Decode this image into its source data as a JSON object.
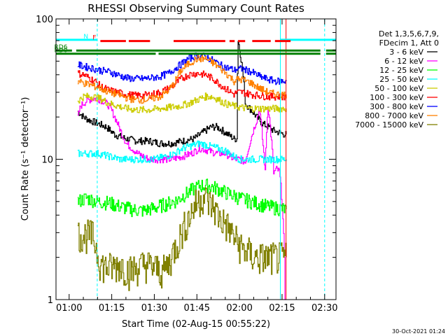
{
  "chart_data": {
    "type": "line",
    "title": "RHESSI Observing Summary Count Rates",
    "xlabel": "Start Time (02-Aug-15 00:55:22)",
    "ylabel": "Count Rate (s⁻¹ detector⁻¹)",
    "ylog": true,
    "ylim": [
      1,
      100
    ],
    "xlim_minutes": [
      55.37,
      154.0
    ],
    "xticks": [
      {
        "min": 60,
        "label": "01:00"
      },
      {
        "min": 75,
        "label": "01:15"
      },
      {
        "min": 90,
        "label": "01:30"
      },
      {
        "min": 105,
        "label": "01:45"
      },
      {
        "min": 120,
        "label": "02:00"
      },
      {
        "min": 135,
        "label": "02:15"
      },
      {
        "min": 150,
        "label": "02:30"
      }
    ],
    "yticks": [
      {
        "val": 1,
        "label": "1"
      },
      {
        "val": 10,
        "label": "10"
      },
      {
        "val": 100,
        "label": "100"
      }
    ],
    "legend_header": [
      "Det 1,3,5,6,7,9,",
      "FDecim 1, Att 0"
    ],
    "legend_position": "right",
    "series": [
      {
        "name": "3 - 6 keV",
        "color": "#000000",
        "x": [
          63,
          64,
          65,
          67,
          70,
          73,
          76,
          80,
          84,
          88,
          92,
          96,
          100,
          104,
          106,
          108,
          110,
          112,
          114,
          116,
          118,
          119,
          119.5,
          122,
          126,
          128,
          130,
          132,
          134,
          136,
          136.5
        ],
        "y": [
          22,
          21,
          20,
          19,
          18,
          17,
          15,
          14,
          13.5,
          13.5,
          13,
          13,
          13.5,
          14,
          15,
          16,
          17,
          17,
          16,
          15,
          14,
          14,
          70,
          25,
          20,
          18,
          17,
          16,
          15.5,
          15,
          15
        ]
      },
      {
        "name": "6 - 12 keV",
        "color": "#ff00ff",
        "x": [
          63,
          64,
          66,
          68,
          70,
          72,
          74,
          76,
          78,
          80,
          84,
          88,
          92,
          96,
          100,
          103,
          106,
          109,
          112,
          115,
          118,
          120,
          122,
          124,
          126,
          127,
          128,
          129,
          130,
          131,
          132,
          133,
          134,
          136,
          136.5
        ],
        "y": [
          20,
          24,
          26,
          27,
          27,
          26,
          24,
          20,
          16,
          13,
          11,
          10,
          10,
          10,
          10.5,
          11,
          12,
          11.5,
          11,
          11,
          10,
          10,
          9.5,
          14,
          19,
          23,
          14,
          8,
          24,
          15,
          8,
          8.5,
          8.2,
          1,
          1
        ]
      },
      {
        "name": "12 - 25 keV",
        "color": "#00ff00",
        "x": [
          63,
          66,
          70,
          74,
          78,
          82,
          86,
          90,
          94,
          98,
          100,
          103,
          106,
          109,
          112,
          115,
          118,
          121,
          124,
          127,
          130,
          133,
          136,
          136.5
        ],
        "y": [
          5,
          5.3,
          5,
          4.9,
          4.6,
          4.4,
          4.3,
          4.5,
          4.8,
          5.1,
          5.5,
          6,
          6.5,
          6.5,
          6.2,
          5.8,
          5.5,
          5.2,
          5,
          4.8,
          4.6,
          4.5,
          4.4,
          4.4
        ]
      },
      {
        "name": "25 - 50 keV",
        "color": "#00ffff",
        "x": [
          63,
          66,
          70,
          74,
          78,
          82,
          86,
          90,
          94,
          97,
          100,
          103,
          106,
          109,
          112,
          115,
          118,
          120,
          122,
          124,
          127,
          130,
          133,
          136,
          136.5
        ],
        "y": [
          11,
          11,
          11,
          10.5,
          10,
          10,
          10,
          10,
          10.5,
          11,
          12,
          12.5,
          13,
          12.5,
          12,
          11.5,
          10.5,
          10,
          10,
          10,
          10,
          10,
          10,
          10,
          10
        ]
      },
      {
        "name": "50 - 100 keV",
        "color": "#cccc00",
        "x": [
          63,
          65,
          68,
          71,
          74,
          77,
          80,
          84,
          88,
          92,
          96,
          99,
          102,
          104,
          106,
          108,
          110,
          112,
          114,
          116,
          118,
          120,
          123,
          126,
          129,
          132,
          136,
          136.5
        ],
        "y": [
          26,
          28,
          28,
          27,
          25,
          24,
          23,
          22.5,
          22.5,
          23,
          23.5,
          24,
          25,
          26,
          27,
          28,
          28,
          27,
          25.5,
          24.5,
          24,
          23.5,
          23,
          23,
          23,
          23,
          23,
          23
        ]
      },
      {
        "name": "100 - 300 keV",
        "color": "#ff0000",
        "x": [
          63,
          65,
          67,
          69,
          71,
          74,
          77,
          80,
          83,
          86,
          89,
          92,
          95,
          97,
          99,
          102,
          105,
          108,
          111,
          114,
          117,
          118,
          119,
          121,
          124,
          127,
          130,
          133,
          136,
          136.5
        ],
        "y": [
          41,
          40,
          38,
          36,
          33,
          31,
          30,
          29,
          28.5,
          28.5,
          29,
          30,
          32,
          34,
          37,
          40,
          41,
          40,
          37,
          33,
          30,
          29,
          30,
          30,
          29,
          28.5,
          28,
          28,
          28,
          28
        ]
      },
      {
        "name": "300 - 800 keV",
        "color": "#0000ff",
        "x": [
          63,
          65,
          67,
          69,
          71,
          74,
          77,
          80,
          83,
          86,
          89,
          92,
          95,
          97,
          99,
          102,
          105,
          108,
          111,
          114,
          117,
          118,
          119,
          121,
          124,
          127,
          130,
          133,
          136,
          136.5
        ],
        "y": [
          47,
          46,
          45,
          44,
          43,
          42,
          40,
          38,
          37.5,
          37.5,
          38,
          39,
          41,
          44,
          47,
          52,
          55,
          54,
          50,
          46,
          44,
          43,
          44,
          44,
          42,
          39,
          37,
          36,
          36,
          36
        ]
      },
      {
        "name": "800 - 7000 keV",
        "color": "#ff8000",
        "x": [
          63,
          65,
          67,
          69,
          71,
          74,
          77,
          80,
          83,
          86,
          89,
          92,
          95,
          97,
          99,
          102,
          105,
          108,
          111,
          114,
          117,
          118,
          119,
          121,
          124,
          127,
          130,
          133,
          136,
          136.5
        ],
        "y": [
          36,
          35,
          34,
          33,
          32,
          30,
          29,
          27.5,
          26.5,
          26.5,
          27,
          28,
          31,
          35,
          42,
          48,
          52,
          52,
          48,
          43,
          38,
          36,
          37,
          37,
          35,
          32,
          30,
          29,
          29,
          29
        ]
      },
      {
        "name": "7000 - 15000 keV",
        "color": "#808000",
        "x": [
          63,
          65,
          68,
          71,
          73,
          75,
          78,
          81,
          84,
          87,
          90,
          93,
          95,
          97,
          99,
          101,
          103,
          105,
          107,
          109,
          111,
          113,
          115,
          117,
          119,
          121,
          123,
          125,
          127,
          129,
          131,
          133,
          135,
          136.5
        ],
        "y": [
          2.9,
          2.9,
          2.9,
          1.8,
          1.7,
          1.7,
          1.8,
          1.6,
          1.7,
          1.8,
          1.7,
          1.6,
          1.8,
          2.3,
          2.8,
          3.5,
          4.2,
          5,
          5.5,
          5,
          4.5,
          3.8,
          3.5,
          3,
          2.6,
          2.3,
          2.2,
          2,
          2,
          2,
          2,
          2,
          2,
          2
        ]
      }
    ],
    "state_bars": [
      {
        "label": "N",
        "color": "#00ffff",
        "segments": [
          [
            55.4,
            70
          ],
          [
            134.4,
            154
          ]
        ],
        "y_label_min": 71
      },
      {
        "label": "F",
        "color": "#ff0000",
        "segments": [
          [
            71,
            80
          ],
          [
            81,
            88.5
          ],
          [
            96.8,
            115
          ],
          [
            116.5,
            118.3
          ],
          [
            119.5,
            122
          ],
          [
            124.5,
            131
          ],
          [
            132.5,
            138
          ]
        ],
        "y_label_min": 69.5
      },
      {
        "label": "RD0",
        "color": "#008000",
        "segments": [
          [
            55.4,
            90.5
          ],
          [
            91.5,
            148.5
          ],
          [
            150.5,
            154
          ]
        ],
        "y_label_min": 56.5
      },
      {
        "label": "RD6",
        "color": "#008000",
        "segments": [
          [
            55.4,
            61
          ],
          [
            62.5,
            148.5
          ],
          [
            150.5,
            154
          ]
        ],
        "y_label_min": 59.5
      }
    ],
    "vertical_markers": [
      {
        "min": 69.9,
        "color": "#00ffff",
        "style": "dashed"
      },
      {
        "min": 134.4,
        "color": "#00ffff",
        "style": "solid"
      },
      {
        "min": 150.0,
        "color": "#00ffff",
        "style": "dashed"
      },
      {
        "min": 136.4,
        "color": "#ff0000",
        "style": "solid"
      }
    ],
    "footer_date": "30-Oct-2021 01:24"
  }
}
